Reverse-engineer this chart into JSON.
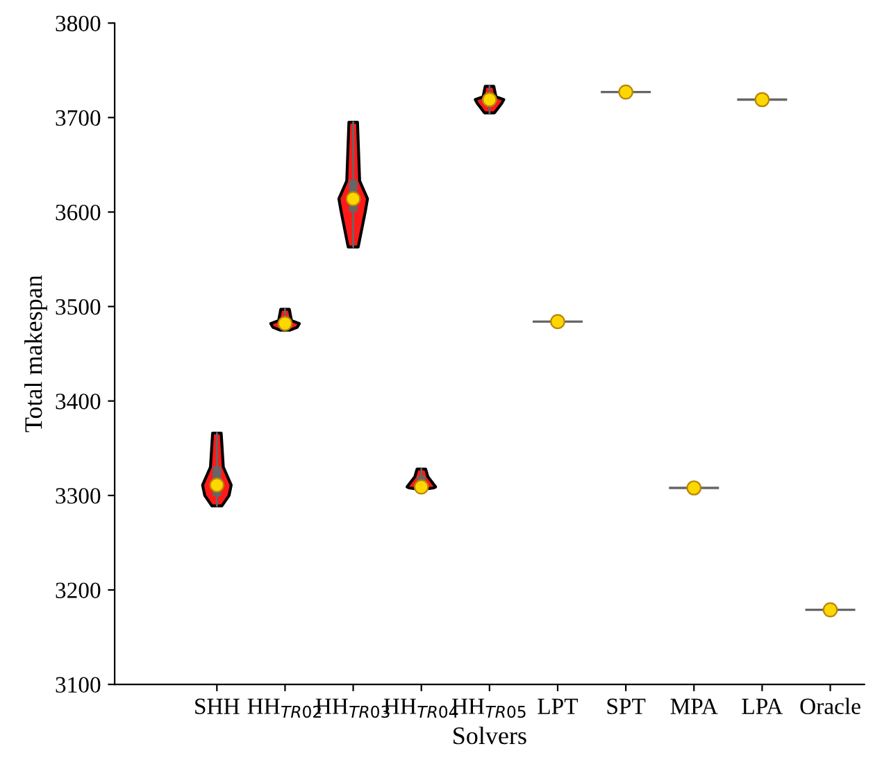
{
  "chart_data": {
    "type": "box",
    "xlabel": "Solvers",
    "ylabel": "Total makespan",
    "categories": [
      "SHH",
      "HH$_{TR02}$",
      "HH$_{TR03}$",
      "HH$_{TR04}$",
      "HH$_{TR05}$",
      "LPT",
      "SPT",
      "MPA",
      "LPA",
      "Oracle"
    ],
    "series": [
      {
        "color": "#666666",
        "boxes": [
          {
            "low": 3289,
            "q1": 3300,
            "median": 3311,
            "q3": 3330,
            "high": 3366,
            "mean": 3311
          },
          {
            "low": 3475,
            "q1": 3478,
            "median": 3482,
            "q3": 3485,
            "high": 3497,
            "mean": 3482
          },
          {
            "low": 3563,
            "q1": 3601,
            "median": 3614,
            "q3": 3633,
            "high": 3695,
            "mean": 3614
          },
          {
            "low": 3307,
            "q1": 3308,
            "median": 3309,
            "q3": 3320,
            "high": 3328,
            "mean": 3309
          },
          {
            "low": 3705,
            "q1": 3715,
            "median": 3719,
            "q3": 3722,
            "high": 3733,
            "mean": 3719
          },
          {
            "low": 3484,
            "q1": 3484,
            "median": 3484,
            "q3": 3484,
            "high": 3484,
            "mean": 3484
          },
          {
            "low": 3727,
            "q1": 3727,
            "median": 3727,
            "q3": 3727,
            "high": 3727,
            "mean": 3727
          },
          {
            "low": 3308,
            "q1": 3308,
            "median": 3308,
            "q3": 3308,
            "high": 3308,
            "mean": 3308
          },
          {
            "low": 3719,
            "q1": 3719,
            "median": 3719,
            "q3": 3719,
            "high": 3719,
            "mean": 3719
          },
          {
            "low": 3179,
            "q1": 3179,
            "median": 3179,
            "q3": 3179,
            "high": 3179,
            "mean": 3179
          }
        ]
      }
    ],
    "ylim": [
      3100,
      3800
    ],
    "yticks": [
      3100,
      3200,
      3300,
      3400,
      3500,
      3600,
      3700,
      3800
    ],
    "grid": false
  }
}
